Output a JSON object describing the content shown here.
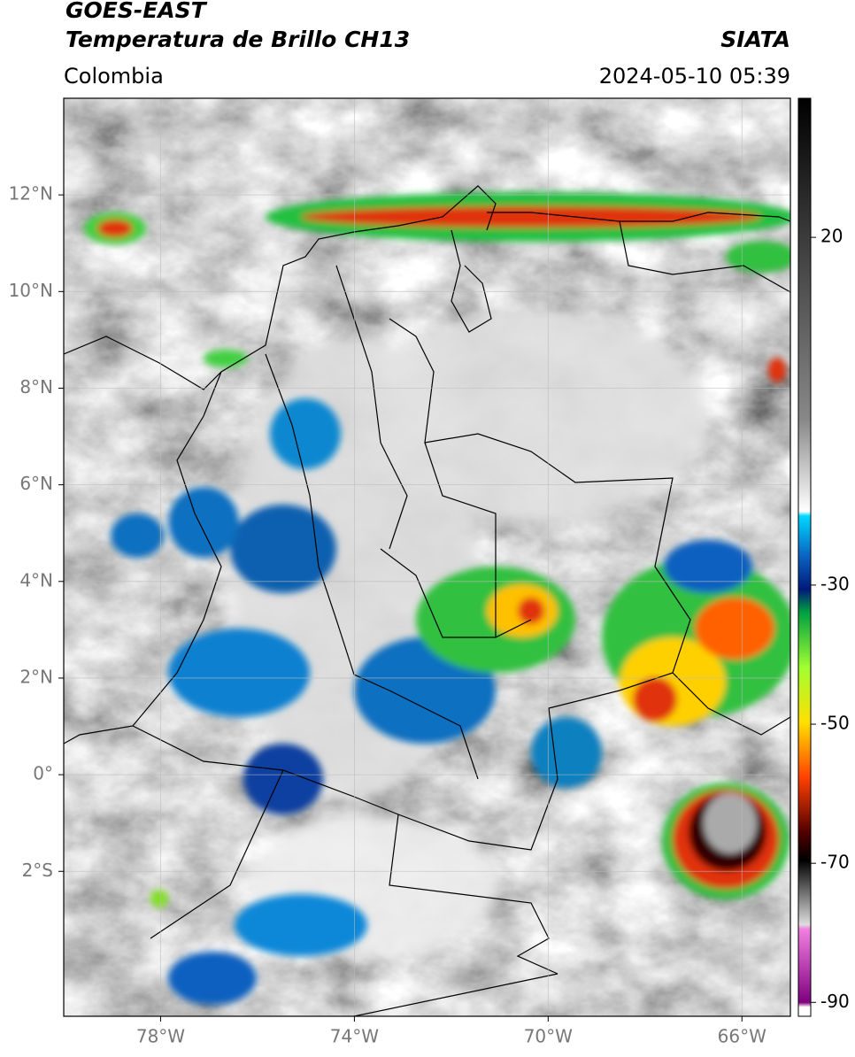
{
  "header": {
    "title": "GOES-EAST",
    "subtitle": "Temperatura de Brillo CH13",
    "source": "SIATA",
    "region": "Colombia",
    "datetime": "2024-05-10 05:39"
  },
  "map": {
    "xlim": [
      -80,
      -65
    ],
    "ylim": [
      -5,
      14
    ],
    "xticks": [
      {
        "value": -78,
        "label": "78°W"
      },
      {
        "value": -74,
        "label": "74°W"
      },
      {
        "value": -70,
        "label": "70°W"
      },
      {
        "value": -66,
        "label": "66°W"
      }
    ],
    "yticks": [
      {
        "value": 12,
        "label": "12°N"
      },
      {
        "value": 10,
        "label": "10°N"
      },
      {
        "value": 8,
        "label": "8°N"
      },
      {
        "value": 6,
        "label": "6°N"
      },
      {
        "value": 4,
        "label": "4°N"
      },
      {
        "value": 2,
        "label": "2°N"
      },
      {
        "value": 0,
        "label": "0°"
      },
      {
        "value": -2,
        "label": "2°S"
      }
    ],
    "grid": true
  },
  "colorbar": {
    "lim": [
      -92,
      40
    ],
    "ticks": [
      20,
      -30,
      -50,
      -70,
      -90
    ]
  }
}
